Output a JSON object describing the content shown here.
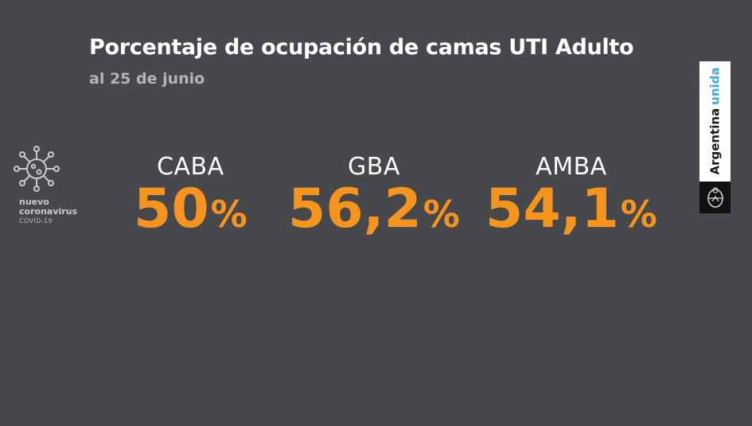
{
  "header": {
    "title": "Porcentaje de ocupación de camas UTI Adulto",
    "subtitle": "al 25 de junio"
  },
  "logo": {
    "icon": "virus-icon",
    "line1": "nuevo",
    "line2": "coronavirus",
    "line3": "COVID-19"
  },
  "stats": [
    {
      "region": "CABA",
      "value": "50",
      "unit": "%"
    },
    {
      "region": "GBA",
      "value": "56,2",
      "unit": "%"
    },
    {
      "region": "AMBA",
      "value": "54,1",
      "unit": "%"
    }
  ],
  "badge": {
    "text1": "Argentina",
    "text2": "unida",
    "seal_icon": "national-seal-icon"
  },
  "colors": {
    "background": "#47484c",
    "accent": "#f7941d",
    "badge_blue": "#3fa9d6"
  }
}
